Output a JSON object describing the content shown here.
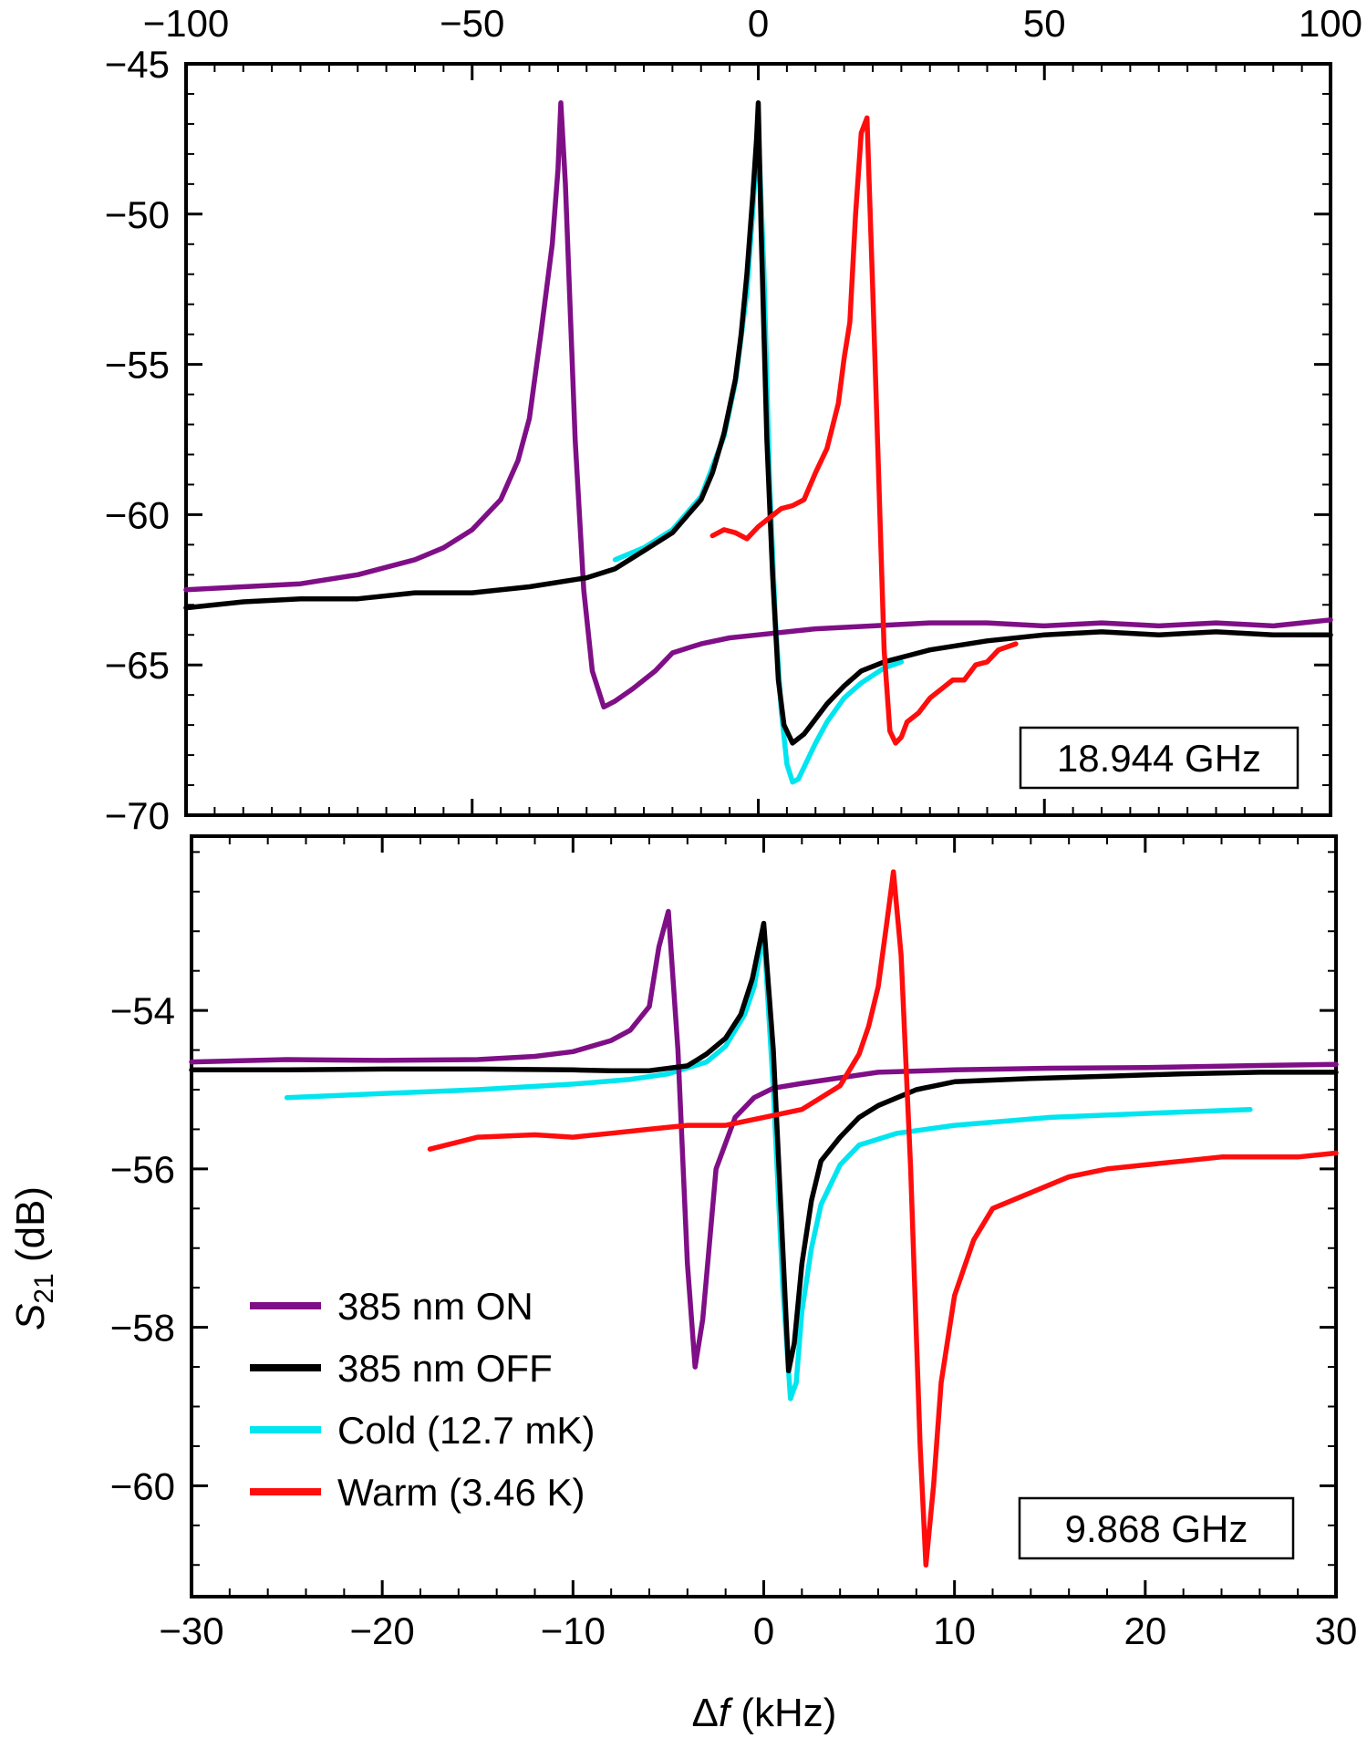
{
  "y_axis_label": {
    "main": "S",
    "sub": "21",
    "unit": " (dB)"
  },
  "x_axis_label": {
    "delta": "Δ",
    "var": "f",
    "unit": " (kHz)"
  },
  "legend": [
    {
      "label": "385 nm ON",
      "color": "#7f0f86"
    },
    {
      "label": "385 nm OFF",
      "color": "#000000"
    },
    {
      "label": "Cold (12.7 mK)",
      "color": "#00e5ef"
    },
    {
      "label": "Warm (3.46 K)",
      "color": "#ff0d0d"
    }
  ],
  "chart_data": [
    {
      "type": "line",
      "panel": "top",
      "annotation": "18.944 GHz",
      "xlim": [
        -100,
        100
      ],
      "ylim": [
        -70,
        -45
      ],
      "x_ticks": [
        -100,
        -50,
        0,
        50,
        100
      ],
      "x_tick_labels": [
        "−100",
        "−50",
        "0",
        "50",
        "100"
      ],
      "y_ticks": [
        -70,
        -65,
        -60,
        -55,
        -50,
        -45
      ],
      "y_tick_labels": [
        "−70",
        "−65",
        "−60",
        "−55",
        "−50",
        "−45"
      ],
      "series": [
        {
          "name": "385 nm ON",
          "color": "#7f0f86",
          "x": [
            -100,
            -90,
            -80,
            -70,
            -60,
            -55,
            -50,
            -45,
            -42,
            -40,
            -38,
            -36,
            -35,
            -34.5,
            -33.7,
            -32,
            -30.5,
            -29,
            -27,
            -25,
            -22,
            -18,
            -15,
            -10,
            -5,
            0,
            10,
            20,
            30,
            40,
            50,
            60,
            70,
            80,
            90,
            100
          ],
          "y": [
            -62.5,
            -62.4,
            -62.3,
            -62.0,
            -61.5,
            -61.1,
            -60.5,
            -59.5,
            -58.2,
            -56.8,
            -54.0,
            -51.0,
            -48.5,
            -46.3,
            -49.0,
            -57.5,
            -62.5,
            -65.2,
            -66.4,
            -66.2,
            -65.8,
            -65.2,
            -64.6,
            -64.3,
            -64.1,
            -64.0,
            -63.8,
            -63.7,
            -63.6,
            -63.6,
            -63.7,
            -63.6,
            -63.7,
            -63.6,
            -63.7,
            -63.5
          ]
        },
        {
          "name": "385 nm OFF",
          "color": "#000000",
          "x": [
            -100,
            -90,
            -80,
            -70,
            -60,
            -50,
            -40,
            -30,
            -25,
            -20,
            -15,
            -10,
            -8,
            -6,
            -4,
            -3,
            -2,
            -1,
            -0.3,
            0,
            0.5,
            1.5,
            2.5,
            3.5,
            4.5,
            6,
            8,
            10,
            12,
            15,
            18,
            22,
            30,
            40,
            50,
            60,
            70,
            80,
            90,
            100
          ],
          "y": [
            -63.1,
            -62.9,
            -62.8,
            -62.8,
            -62.6,
            -62.6,
            -62.4,
            -62.1,
            -61.8,
            -61.2,
            -60.6,
            -59.5,
            -58.6,
            -57.3,
            -55.5,
            -54.0,
            -52.0,
            -49.5,
            -47.5,
            -46.3,
            -50.5,
            -57.5,
            -62.0,
            -65.5,
            -67.0,
            -67.6,
            -67.3,
            -66.8,
            -66.3,
            -65.7,
            -65.2,
            -64.9,
            -64.5,
            -64.2,
            -64.0,
            -63.9,
            -64.0,
            -63.9,
            -64.0,
            -64.0
          ]
        },
        {
          "name": "Cold (12.7 mK)",
          "color": "#00e5ef",
          "x": [
            -25,
            -20,
            -15,
            -10,
            -6,
            -4,
            -2,
            -1,
            0,
            1,
            2,
            3,
            4,
            5,
            6,
            7,
            8,
            10,
            12,
            15,
            18,
            22,
            25
          ],
          "y": [
            -61.5,
            -61.1,
            -60.5,
            -59.4,
            -57.4,
            -55.6,
            -52.6,
            -50.0,
            -47.2,
            -52.0,
            -59.0,
            -63.5,
            -66.5,
            -68.3,
            -68.9,
            -68.8,
            -68.4,
            -67.6,
            -66.9,
            -66.1,
            -65.6,
            -65.1,
            -64.9
          ]
        },
        {
          "name": "Warm (3.46 K)",
          "color": "#ff0d0d",
          "x": [
            -8,
            -6,
            -4,
            -2,
            0,
            2,
            4,
            6,
            8,
            10,
            12,
            14,
            15,
            16,
            17,
            18,
            19,
            20,
            21,
            22,
            23,
            24,
            25,
            26,
            28,
            30,
            32,
            34,
            36,
            38,
            40,
            42,
            45
          ],
          "y": [
            -60.7,
            -60.5,
            -60.6,
            -60.8,
            -60.4,
            -60.1,
            -59.8,
            -59.7,
            -59.5,
            -58.6,
            -57.8,
            -56.3,
            -54.8,
            -53.6,
            -50.0,
            -47.3,
            -46.8,
            -52.5,
            -58.5,
            -64.5,
            -67.2,
            -67.6,
            -67.4,
            -66.9,
            -66.6,
            -66.1,
            -65.8,
            -65.5,
            -65.5,
            -65.0,
            -64.9,
            -64.5,
            -64.3
          ]
        }
      ]
    },
    {
      "type": "line",
      "panel": "bottom",
      "annotation": "9.868 GHz",
      "xlim": [
        -30,
        30
      ],
      "ylim": [
        -61.4,
        -51.8
      ],
      "x_ticks": [
        -30,
        -20,
        -10,
        0,
        10,
        20,
        30
      ],
      "x_tick_labels": [
        "−30",
        "−20",
        "−10",
        "0",
        "10",
        "20",
        "30"
      ],
      "y_ticks": [
        -60,
        -58,
        -56,
        -54
      ],
      "y_tick_labels": [
        "−60",
        "−58",
        "−56",
        "−54"
      ],
      "series": [
        {
          "name": "385 nm ON",
          "color": "#7f0f86",
          "x": [
            -30,
            -25,
            -20,
            -15,
            -12,
            -10,
            -8,
            -7,
            -6,
            -5.5,
            -5,
            -4.5,
            -4,
            -3.6,
            -3.2,
            -2.5,
            -1.5,
            -0.5,
            0.5,
            2,
            4,
            6,
            10,
            15,
            20,
            25,
            30
          ],
          "y": [
            -54.65,
            -54.62,
            -54.63,
            -54.62,
            -54.58,
            -54.52,
            -54.38,
            -54.25,
            -53.95,
            -53.2,
            -52.75,
            -54.5,
            -57.2,
            -58.5,
            -57.9,
            -56.0,
            -55.35,
            -55.1,
            -54.98,
            -54.92,
            -54.85,
            -54.78,
            -54.75,
            -54.73,
            -54.72,
            -54.7,
            -54.68
          ]
        },
        {
          "name": "385 nm OFF",
          "color": "#000000",
          "x": [
            -30,
            -25,
            -20,
            -15,
            -10,
            -8,
            -6,
            -4,
            -3,
            -2,
            -1.2,
            -0.6,
            0,
            0.5,
            0.9,
            1.3,
            1.6,
            2,
            2.5,
            3,
            4,
            5,
            6,
            8,
            10,
            14,
            18,
            22,
            26,
            30
          ],
          "y": [
            -54.75,
            -54.75,
            -54.74,
            -54.74,
            -54.75,
            -54.76,
            -54.76,
            -54.7,
            -54.55,
            -54.35,
            -54.05,
            -53.6,
            -52.9,
            -54.5,
            -56.5,
            -58.55,
            -58.2,
            -57.2,
            -56.4,
            -55.9,
            -55.6,
            -55.35,
            -55.2,
            -55.0,
            -54.9,
            -54.86,
            -54.83,
            -54.8,
            -54.78,
            -54.78
          ]
        },
        {
          "name": "Cold (12.7 mK)",
          "color": "#00e5ef",
          "x": [
            -25,
            -20,
            -15,
            -10,
            -7,
            -5,
            -3,
            -2,
            -1,
            -0.5,
            0,
            0.5,
            1,
            1.4,
            1.7,
            2,
            2.5,
            3,
            4,
            5,
            7,
            10,
            15,
            20,
            25.5
          ],
          "y": [
            -55.1,
            -55.05,
            -55.0,
            -54.93,
            -54.87,
            -54.8,
            -54.65,
            -54.45,
            -54.05,
            -53.7,
            -53.0,
            -55.0,
            -57.5,
            -58.9,
            -58.7,
            -57.8,
            -57.0,
            -56.45,
            -55.95,
            -55.7,
            -55.55,
            -55.45,
            -55.35,
            -55.3,
            -55.25
          ]
        },
        {
          "name": "Warm (3.46 K)",
          "color": "#ff0d0d",
          "x": [
            -17.5,
            -15,
            -12,
            -10,
            -8,
            -6,
            -4,
            -2,
            0,
            2,
            3,
            4,
            5,
            5.5,
            6,
            6.5,
            6.8,
            7.2,
            7.7,
            8.2,
            8.5,
            8.9,
            9.3,
            10,
            11,
            12,
            14,
            16,
            18,
            20,
            22,
            24,
            26,
            28,
            30
          ],
          "y": [
            -55.75,
            -55.6,
            -55.57,
            -55.6,
            -55.55,
            -55.5,
            -55.45,
            -55.45,
            -55.35,
            -55.25,
            -55.1,
            -54.95,
            -54.55,
            -54.2,
            -53.7,
            -52.8,
            -52.25,
            -53.3,
            -56.0,
            -59.5,
            -61.0,
            -60.0,
            -58.7,
            -57.6,
            -56.9,
            -56.5,
            -56.3,
            -56.1,
            -56.0,
            -55.95,
            -55.9,
            -55.85,
            -55.85,
            -55.85,
            -55.8
          ]
        }
      ]
    }
  ]
}
